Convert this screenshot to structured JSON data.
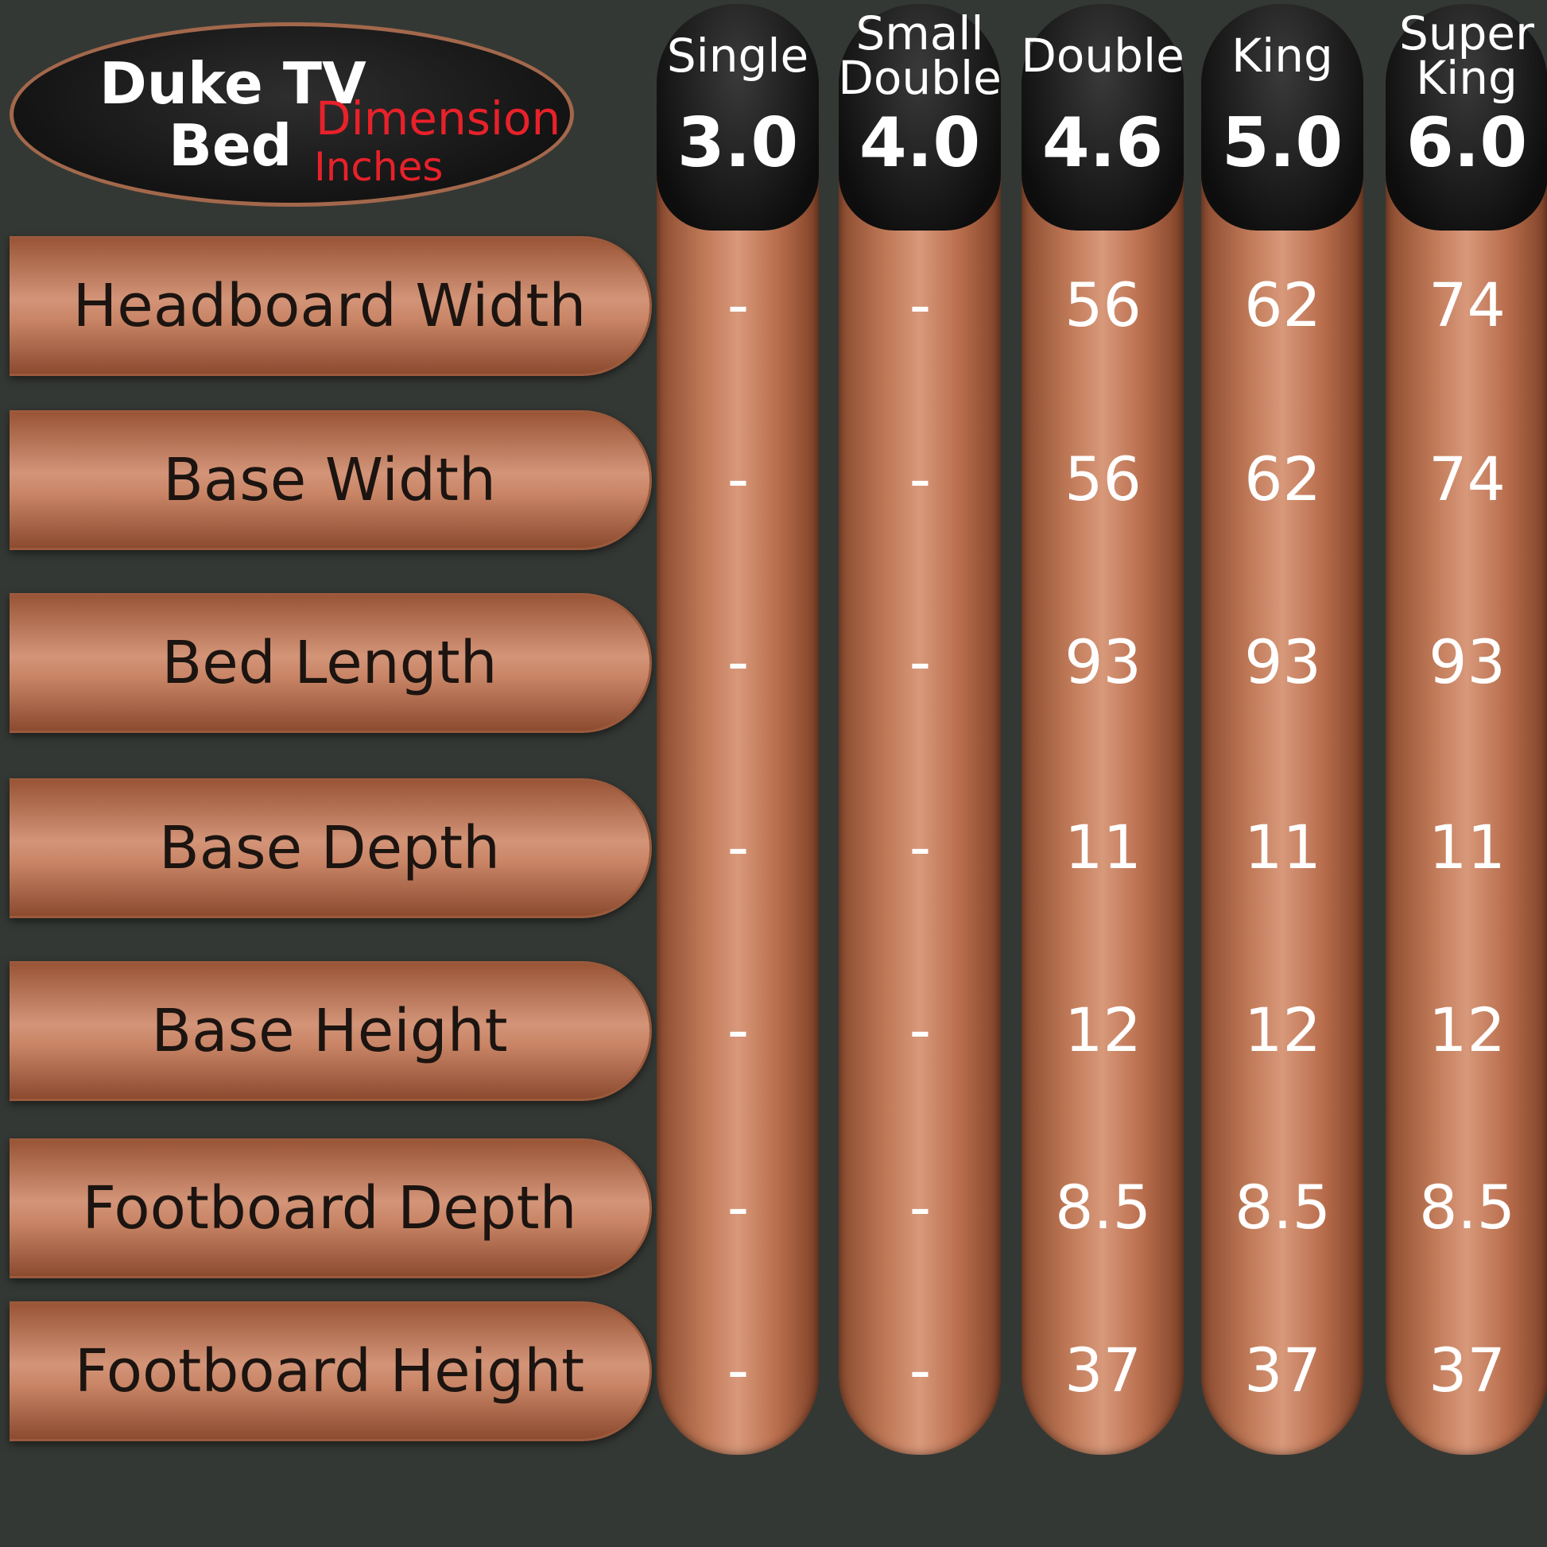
{
  "header": {
    "title": "Duke TV",
    "subtitle": "Bed",
    "unit_line1": "Dimension",
    "unit_line2": "Inches"
  },
  "columns": [
    {
      "name": "Single",
      "size": "3.0"
    },
    {
      "name": "Small Double",
      "size": "4.0"
    },
    {
      "name": "Double",
      "size": "4.6"
    },
    {
      "name": "King",
      "size": "5.0"
    },
    {
      "name": "Super King",
      "size": "6.0"
    }
  ],
  "rows": [
    {
      "label": "Headboard Width",
      "values": [
        "-",
        "-",
        56,
        62,
        74
      ]
    },
    {
      "label": "Base Width",
      "values": [
        "-",
        "-",
        56,
        62,
        74
      ]
    },
    {
      "label": "Bed Length",
      "values": [
        "-",
        "-",
        93,
        93,
        93
      ]
    },
    {
      "label": "Base Depth",
      "values": [
        "-",
        "-",
        11,
        11,
        11
      ]
    },
    {
      "label": "Base Height",
      "values": [
        "-",
        "-",
        12,
        12,
        12
      ]
    },
    {
      "label": "Footboard Depth",
      "values": [
        "-",
        "-",
        8.5,
        8.5,
        8.5
      ]
    },
    {
      "label": "Footboard Height",
      "values": [
        "-",
        "-",
        37,
        37,
        37
      ]
    }
  ]
}
